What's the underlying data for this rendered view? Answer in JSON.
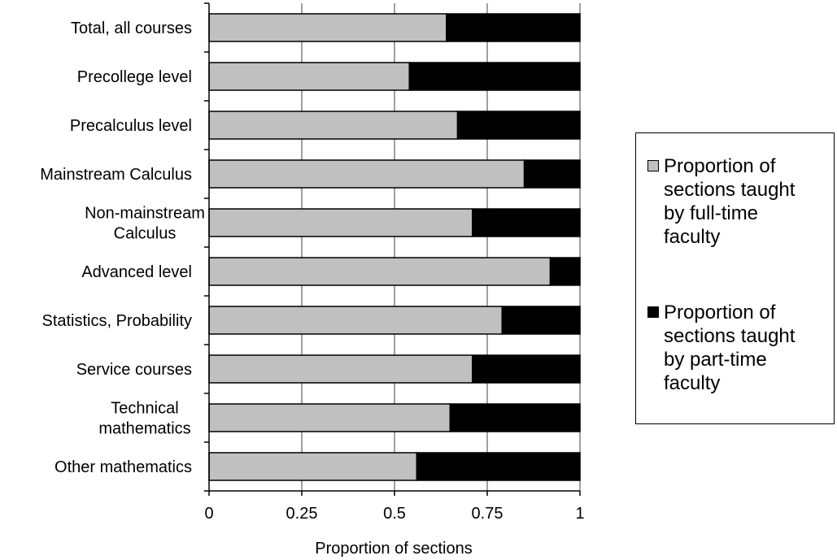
{
  "chart_data": {
    "type": "bar",
    "orientation": "horizontal",
    "stacked": true,
    "categories": [
      "Total, all courses",
      "Precollege level",
      "Precalculus level",
      "Mainstream Calculus",
      "Non-mainstream Calculus",
      "Advanced level",
      "Statistics, Probability",
      "Service courses",
      "Technical mathematics",
      "Other mathematics"
    ],
    "category_lines": [
      [
        "Total, all courses"
      ],
      [
        "Precollege level"
      ],
      [
        "Precalculus level"
      ],
      [
        "Mainstream Calculus"
      ],
      [
        "Non-mainstream",
        "Calculus"
      ],
      [
        "Advanced level"
      ],
      [
        "Statistics, Probability"
      ],
      [
        "Service courses"
      ],
      [
        "Technical",
        "mathematics"
      ],
      [
        "Other mathematics"
      ]
    ],
    "series": [
      {
        "name": "Proportion of sections taught by full-time faculty",
        "color": "#c0c0c0",
        "values": [
          0.64,
          0.54,
          0.67,
          0.85,
          0.71,
          0.92,
          0.79,
          0.71,
          0.65,
          0.56
        ]
      },
      {
        "name": "Proportion of sections taught by part-time faculty",
        "color": "#000000",
        "values": [
          0.36,
          0.46,
          0.33,
          0.15,
          0.29,
          0.08,
          0.21,
          0.29,
          0.35,
          0.44
        ]
      }
    ],
    "xlabel": "Proportion of sections",
    "ylabel": "",
    "xlim": [
      0,
      1
    ],
    "x_ticks": [
      0,
      0.25,
      0.5,
      0.75,
      1
    ],
    "x_tick_labels": [
      "0",
      "0.25",
      "0.5",
      "0.75",
      "1"
    ],
    "grid": "vertical",
    "legend_position": "right"
  },
  "legend": {
    "items": [
      {
        "lines": [
          "Proportion of",
          "sections taught",
          "by full-time",
          "faculty"
        ],
        "color": "#c0c0c0"
      },
      {
        "lines": [
          "Proportion of",
          "sections taught",
          "by part-time",
          "faculty"
        ],
        "color": "#000000"
      }
    ]
  }
}
